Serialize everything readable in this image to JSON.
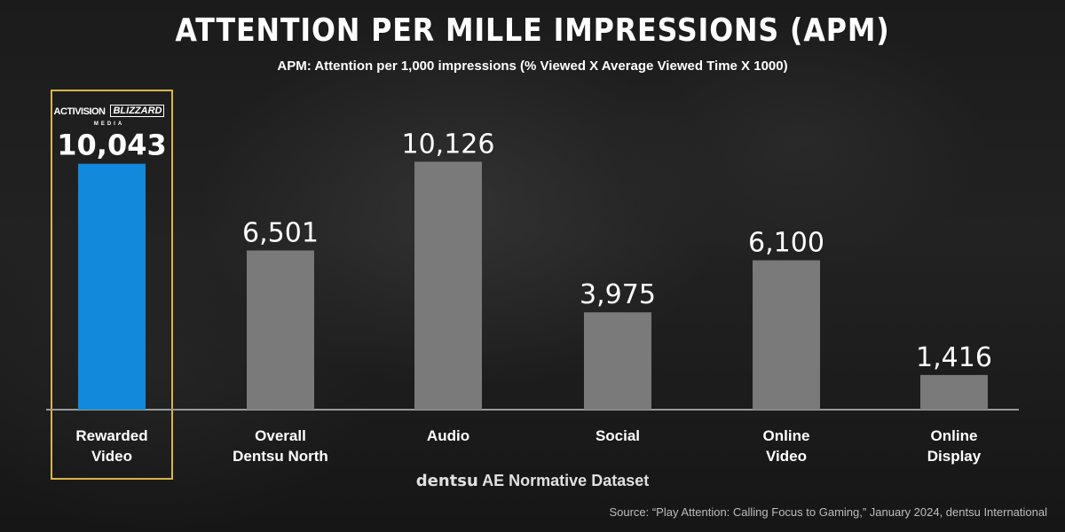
{
  "chart_data": {
    "type": "bar",
    "title": "ATTENTION PER MILLE IMPRESSIONS (APM)",
    "subtitle": "APM: Attention per 1,000 impressions (% Viewed X Average Viewed Time X 1000)",
    "categories": [
      [
        "Rewarded",
        "Video"
      ],
      [
        "Overall",
        "Dentsu North"
      ],
      [
        "Audio"
      ],
      [
        "Social"
      ],
      [
        "Online",
        "Video"
      ],
      [
        "Online",
        "Display"
      ]
    ],
    "values": [
      10043,
      6501,
      10126,
      3975,
      6100,
      1416
    ],
    "value_labels": [
      "10,043",
      "6,501",
      "10,126",
      "3,975",
      "6,100",
      "1,416"
    ],
    "highlight_index": 0,
    "ylim": [
      0,
      11300
    ],
    "grid": false,
    "colors": {
      "highlight_bar": "#1389DC",
      "bar": "#7A7A7A",
      "highlight_box": "#D8B548",
      "baseline": "#9A9A9A"
    }
  },
  "logo": {
    "name": "activision-blizzard-media-logo",
    "left_text": "ACTIVISION",
    "right_text": "BLIZZARD",
    "sub_text": "MEDIA"
  },
  "footer": {
    "brand": "dentsu",
    "dataset": "AE Normative Dataset",
    "source": "Source: “Play Attention: Calling Focus to Gaming,” January 2024, dentsu International"
  }
}
